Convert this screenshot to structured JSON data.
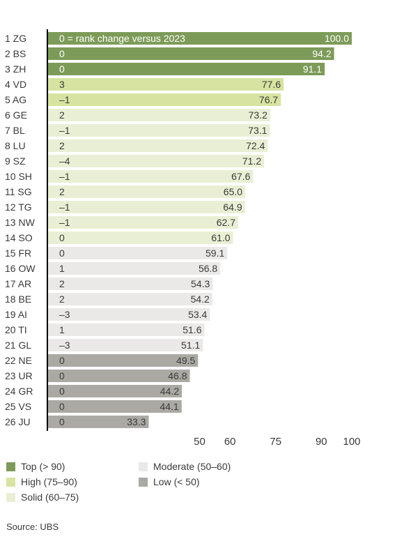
{
  "chart_data": {
    "type": "bar",
    "orientation": "horizontal",
    "categories": [
      "1 ZG",
      "2 BS",
      "3 ZH",
      "4 VD",
      "5 AG",
      "6 GE",
      "7 BL",
      "8 LU",
      "9 SZ",
      "10 SH",
      "11 SG",
      "12 TG",
      "13 NW",
      "14 SO",
      "15 FR",
      "16 OW",
      "17 AR",
      "18 BE",
      "19 AI",
      "20 TI",
      "21 GL",
      "22 NE",
      "23 UR",
      "24 GR",
      "25 VS",
      "26 JU"
    ],
    "values": [
      100.0,
      94.2,
      91.1,
      77.6,
      76.7,
      73.2,
      73.1,
      72.4,
      71.2,
      67.6,
      65.0,
      64.9,
      62.7,
      61.0,
      59.1,
      56.8,
      54.3,
      54.2,
      53.4,
      51.6,
      51.1,
      49.5,
      46.8,
      44.2,
      44.1,
      33.3
    ],
    "value_labels": [
      "100.0",
      "94.2",
      "91.1",
      "77.6",
      "76.7",
      "73.2",
      "73.1",
      "72.4",
      "71.2",
      "67.6",
      "65.0",
      "64.9",
      "62.7",
      "61.0",
      "59.1",
      "56.8",
      "54.3",
      "54.2",
      "53.4",
      "51.6",
      "51.1",
      "49.5",
      "46.8",
      "44.2",
      "44.1",
      "33.3"
    ],
    "rank_change": [
      "0 = rank change versus 2023",
      "0",
      "0",
      "3",
      "–1",
      "2",
      "–1",
      "2",
      "–4",
      "–1",
      "2",
      "–1",
      "–1",
      "0",
      "0",
      "1",
      "2",
      "2",
      "–3",
      "1",
      "–3",
      "0",
      "0",
      "0",
      "0",
      "0"
    ],
    "groups": [
      "Top",
      "Top",
      "Top",
      "High",
      "High",
      "Solid",
      "Solid",
      "Solid",
      "Solid",
      "Solid",
      "Solid",
      "Solid",
      "Solid",
      "Solid",
      "Moderate",
      "Moderate",
      "Moderate",
      "Moderate",
      "Moderate",
      "Moderate",
      "Moderate",
      "Low",
      "Low",
      "Low",
      "Low",
      "Low"
    ],
    "xticks": [
      50,
      60,
      75,
      90,
      100
    ],
    "xtick_labels": [
      "50",
      "60",
      "75",
      "90",
      "100"
    ],
    "xlim": [
      0,
      100
    ],
    "grid": false,
    "colors": {
      "Top": "#7d9b58",
      "High": "#d7e3a0",
      "Solid": "#e9efd4",
      "Moderate": "#ebe9e7",
      "Low": "#aaa9a4"
    },
    "legend": [
      {
        "key": "Top",
        "label": "Top (> 90)"
      },
      {
        "key": "High",
        "label": "High (75–90)"
      },
      {
        "key": "Solid",
        "label": "Solid (60–75)"
      },
      {
        "key": "Moderate",
        "label": "Moderate (50–60)"
      },
      {
        "key": "Low",
        "label": "Low (< 50)"
      }
    ],
    "legend_position": "bottom"
  },
  "source": "Source: UBS"
}
